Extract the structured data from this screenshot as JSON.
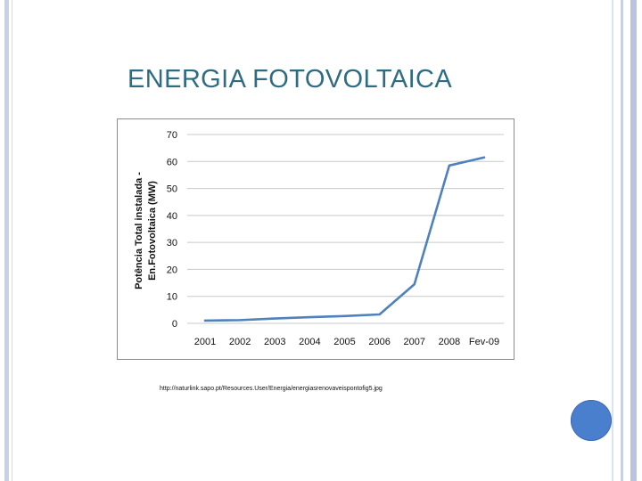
{
  "slide": {
    "title": "ENERGIA FOTOVOLTAICA",
    "source": "http://naturlink.sapo.pt/Resources.User/Energia/energiasrenovaveispontofig5.jpg"
  },
  "colors": {
    "title": "#2E6C83",
    "line": "#4F81BD",
    "grid": "#C9C9C9",
    "chart_border": "#8B8B8B",
    "nav_dot": "#4A7FCE",
    "rail": "#C7D0E6"
  },
  "chart_data": {
    "type": "line",
    "categories": [
      "2001",
      "2002",
      "2003",
      "2004",
      "2005",
      "2006",
      "2007",
      "2008",
      "Fev-09"
    ],
    "series": [
      {
        "values": [
          1.0,
          1.2,
          1.8,
          2.3,
          2.7,
          3.3,
          14.5,
          58.5,
          61.5
        ]
      }
    ],
    "title": "",
    "xlabel": "",
    "ylabel_lines": [
      "Potência Total instalada -",
      "En.Fotovoltaica (MW)"
    ],
    "ylim": [
      0,
      70
    ],
    "yticks": [
      0,
      10,
      20,
      30,
      40,
      50,
      60,
      70
    ],
    "grid": true,
    "legend": "none"
  }
}
